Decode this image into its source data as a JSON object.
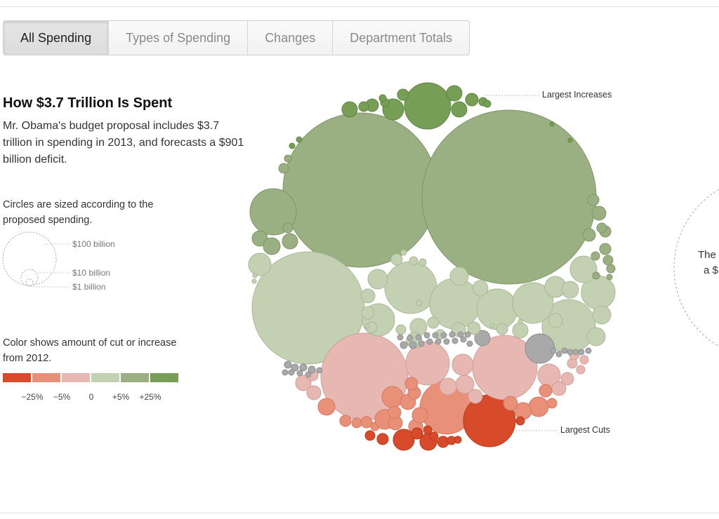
{
  "tabs": [
    {
      "label": "All Spending",
      "active": true
    },
    {
      "label": "Types of Spending",
      "active": false
    },
    {
      "label": "Changes",
      "active": false
    },
    {
      "label": "Department Totals",
      "active": false
    }
  ],
  "intro": {
    "title": "How $3.7 Trillion Is Spent",
    "description": "Mr. Obama's budget proposal includes $3.7 trillion in spending in 2013, and forecasts a $901 billion deficit."
  },
  "size_legend": {
    "note": "Circles are sized according to the proposed spending.",
    "labels": [
      "$100 billion",
      "$10 billion",
      "$1 billion"
    ]
  },
  "color_legend": {
    "note": "Color shows amount of cut or increase from 2012.",
    "colors": [
      "#d84b2a",
      "#e99178",
      "#e7b7b1",
      "#c3d0b2",
      "#9aaf82",
      "#779e55"
    ],
    "labels": [
      "−25%",
      "−5%",
      "0",
      "+5%",
      "+25%"
    ]
  },
  "annotations": {
    "increases": "Largest Increases",
    "cuts": "Largest Cuts"
  },
  "peek": {
    "line1": "The",
    "line2": "a $"
  }
}
